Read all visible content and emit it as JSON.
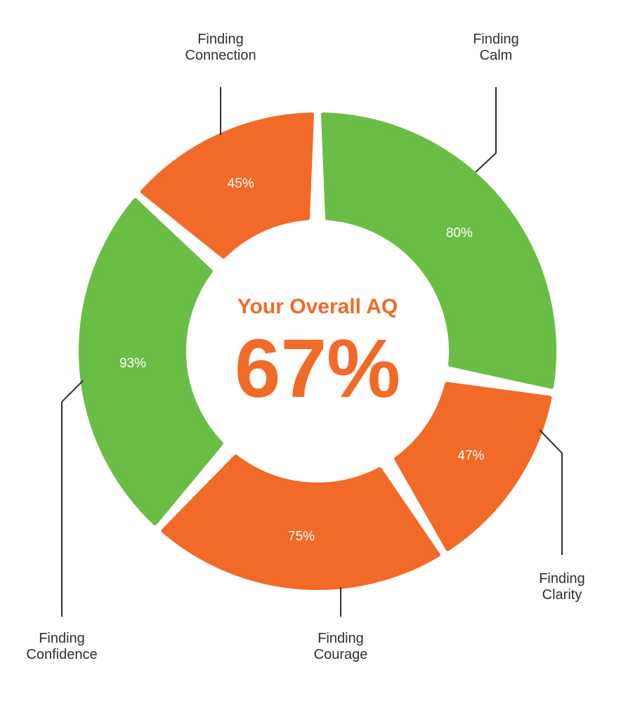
{
  "colors": {
    "green": "#6abd45",
    "orange": "#f26a28",
    "text": "#2f2f2f",
    "white": "#ffffff"
  },
  "center": {
    "title": "Your Overall AQ",
    "value": "67%"
  },
  "chart_data": {
    "type": "donut",
    "title": "Your Overall AQ",
    "overall": 67,
    "segments": [
      {
        "name": "Finding Calm",
        "lines": [
          "Finding",
          "Calm"
        ],
        "value": 80,
        "label": "80%",
        "color": "green"
      },
      {
        "name": "Finding Clarity",
        "lines": [
          "Finding",
          "Clarity"
        ],
        "value": 47,
        "label": "47%",
        "color": "orange"
      },
      {
        "name": "Finding Courage",
        "lines": [
          "Finding",
          "Courage"
        ],
        "value": 75,
        "label": "75%",
        "color": "orange"
      },
      {
        "name": "Finding Confidence",
        "lines": [
          "Finding",
          "Confidence"
        ],
        "value": 93,
        "label": "93%",
        "color": "green"
      },
      {
        "name": "Finding Connection",
        "lines": [
          "Finding",
          "Connection"
        ],
        "value": 45,
        "label": "45%",
        "color": "orange"
      }
    ]
  }
}
